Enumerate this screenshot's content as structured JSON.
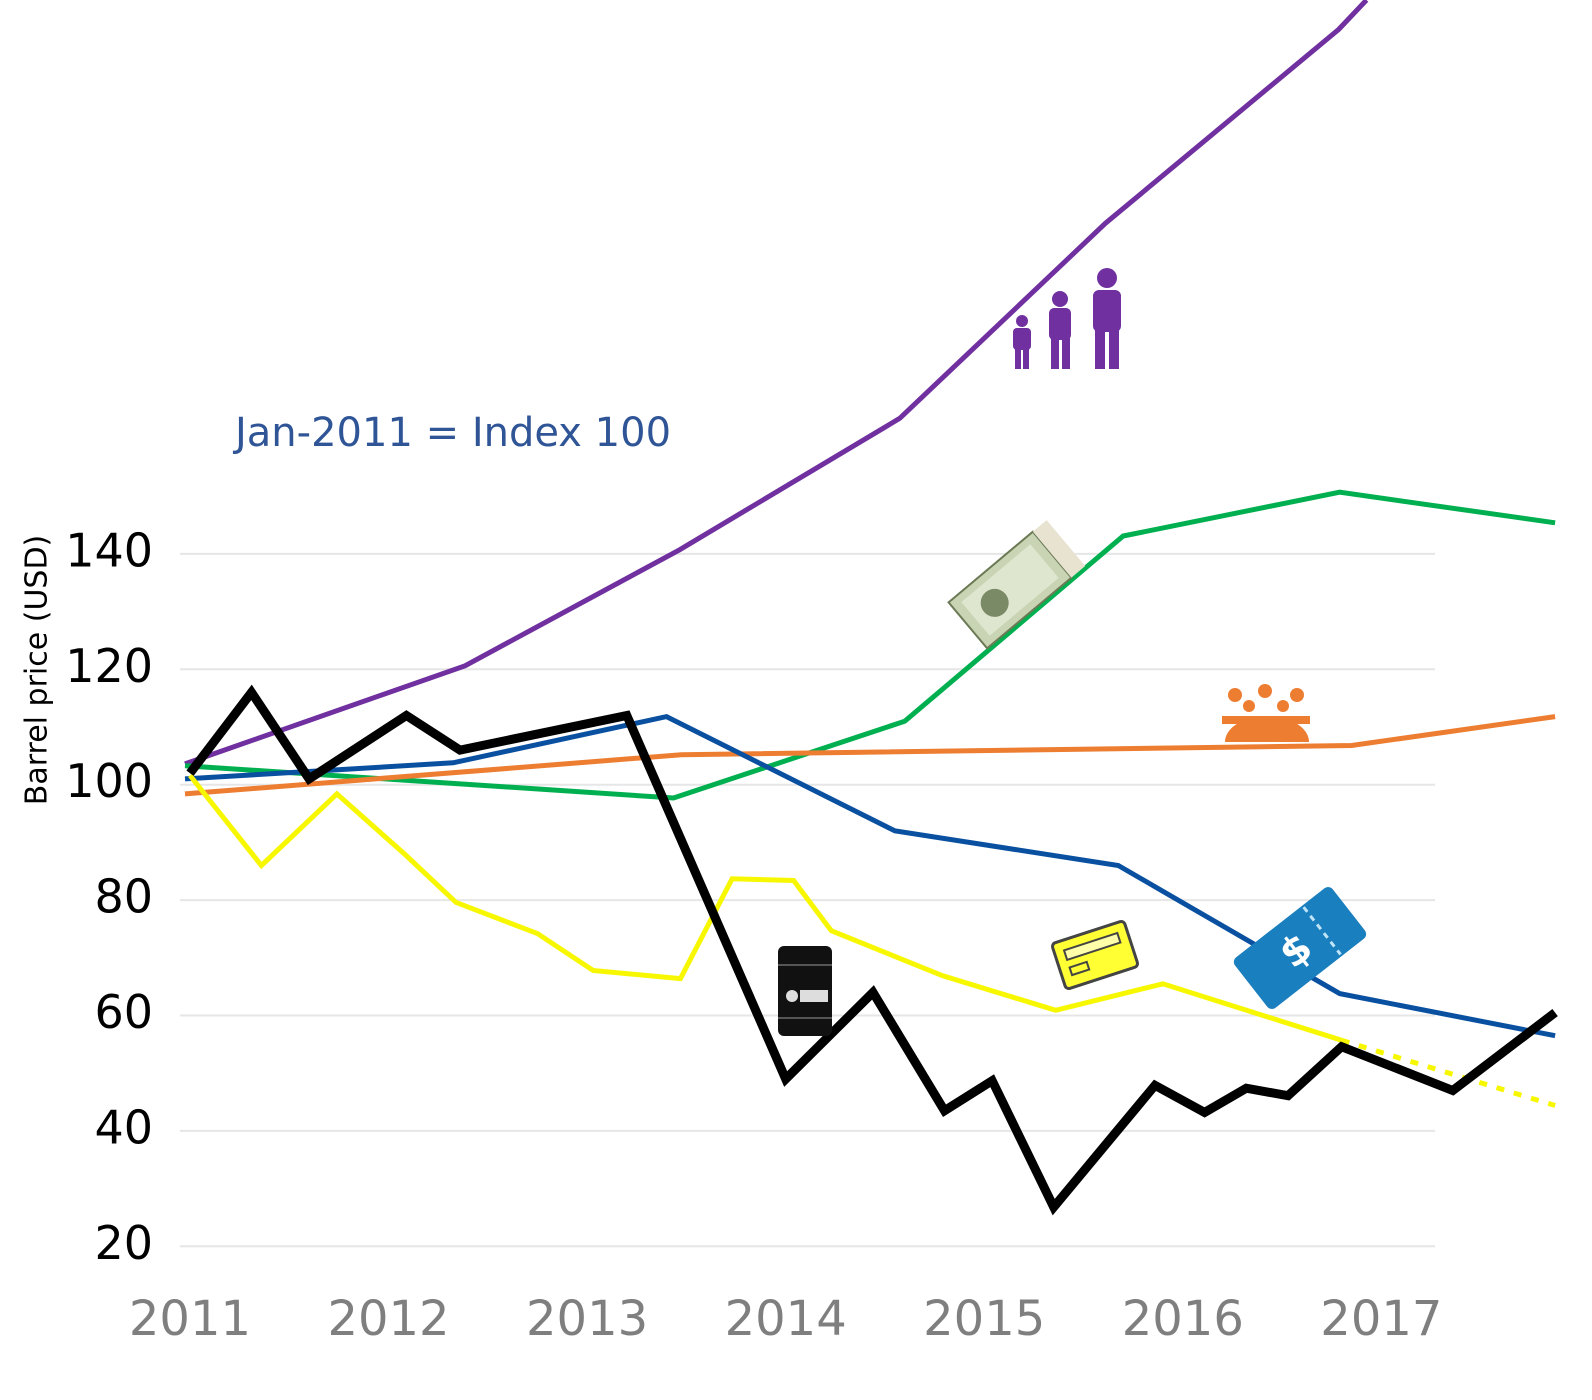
{
  "chart_data": {
    "type": "line",
    "annotation": "Jan-2011 = Index 100",
    "y_label": "Barrel price (USD)",
    "xlim": [
      2010.975,
      2017.95
    ],
    "xticks": [
      2011,
      2012,
      2013,
      2014,
      2015,
      2016,
      2017
    ],
    "ylim": [
      10,
      236
    ],
    "yticks": [
      20,
      40,
      60,
      80,
      100,
      120,
      140
    ],
    "grid": true,
    "series": [
      {
        "color": "#7030a0",
        "width": 5,
        "x": [
          2010.975,
          2012.385,
          2013.465,
          2014.575,
          2015.61,
          2016.785,
          2016.925
        ],
        "values": [
          103.6,
          120.6,
          140.7,
          163.5,
          197.3,
          230.9,
          236
        ]
      },
      {
        "color": "#00b050",
        "width": 5,
        "x": [
          2010.975,
          2013.435,
          2014.6,
          2015.7,
          2016.79,
          2017.875
        ],
        "values": [
          103.3,
          97.7,
          111,
          143.1,
          150.7,
          145.4
        ]
      },
      {
        "color": "#ed7d31",
        "width": 5,
        "x": [
          2010.975,
          2013.475,
          2016.85,
          2017.875
        ],
        "values": [
          98.4,
          105.2,
          106.8,
          111.8
        ]
      },
      {
        "color": "#0a50a0",
        "width": 5,
        "x": [
          2010.975,
          2012.325,
          2013.4,
          2014.55,
          2015.675,
          2016.79,
          2017.875
        ],
        "values": [
          101,
          103.8,
          111.8,
          92,
          86,
          63.8,
          56.5
        ]
      },
      {
        "color": "#f7f700",
        "width": 5,
        "x": [
          2011,
          2011.36,
          2011.74,
          2012.08,
          2012.34,
          2012.75,
          2013.03,
          2013.47,
          2013.73,
          2014.04,
          2014.23,
          2014.79,
          2015.36,
          2015.9,
          2016.8
        ],
        "values": [
          101.6,
          86,
          98.4,
          88,
          79.6,
          74.2,
          67.8,
          66.4,
          83.7,
          83.4,
          74.7,
          66.9,
          60.9,
          65.5,
          55.7
        ]
      },
      {
        "color": "#f7f700",
        "width": 5,
        "dash": true,
        "x": [
          2016.8,
          2017.875
        ],
        "values": [
          55.7,
          44.4
        ]
      },
      {
        "color": "#000000",
        "width": 9,
        "x": [
          2011,
          2011.31,
          2011.6,
          2012.09,
          2012.36,
          2013.2,
          2014,
          2014.44,
          2014.8,
          2015.04,
          2015.35,
          2015.86,
          2016.11,
          2016.32,
          2016.53,
          2016.8,
          2017.36,
          2017.875
        ],
        "values": [
          102,
          116,
          101,
          112,
          106,
          112,
          49,
          64,
          43.5,
          48.7,
          26.8,
          47.9,
          43.2,
          47.4,
          46.1,
          54.6,
          47,
          60.5
        ]
      }
    ]
  }
}
